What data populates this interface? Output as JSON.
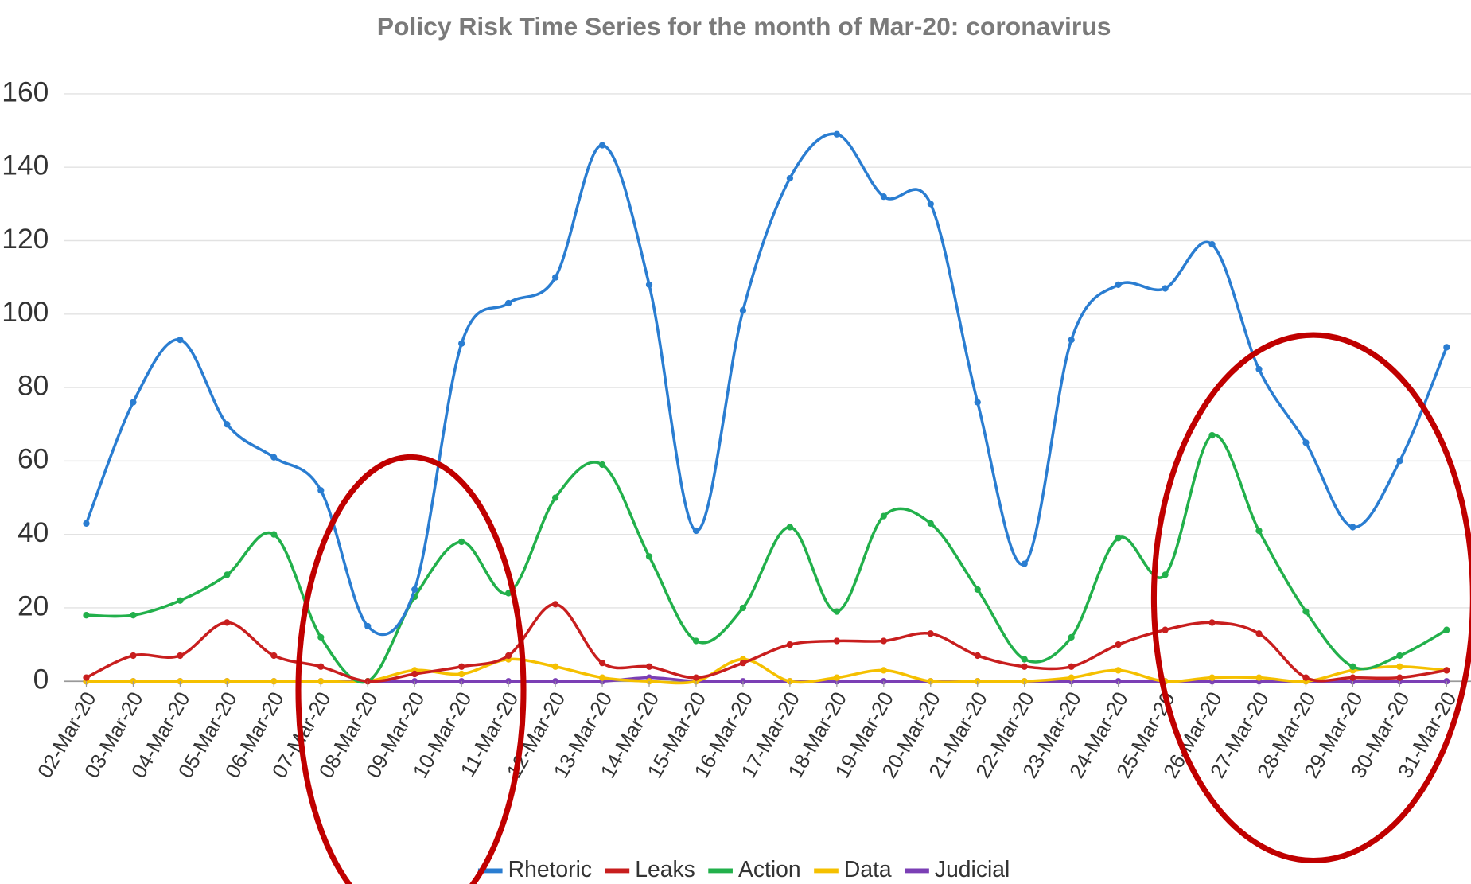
{
  "chart_data": {
    "type": "line",
    "title": "Policy Risk Time Series for the month of Mar-20: coronavirus",
    "categories": [
      "02-Mar-20",
      "03-Mar-20",
      "04-Mar-20",
      "05-Mar-20",
      "06-Mar-20",
      "07-Mar-20",
      "08-Mar-20",
      "09-Mar-20",
      "10-Mar-20",
      "11-Mar-20",
      "12-Mar-20",
      "13-Mar-20",
      "14-Mar-20",
      "15-Mar-20",
      "16-Mar-20",
      "17-Mar-20",
      "18-Mar-20",
      "19-Mar-20",
      "20-Mar-20",
      "21-Mar-20",
      "22-Mar-20",
      "23-Mar-20",
      "24-Mar-20",
      "25-Mar-20",
      "26-Mar-20",
      "27-Mar-20",
      "28-Mar-20",
      "29-Mar-20",
      "30-Mar-20",
      "31-Mar-20"
    ],
    "series": [
      {
        "name": "Rhetoric",
        "color": "#2a7dd1",
        "values": [
          43,
          76,
          93,
          70,
          61,
          52,
          15,
          25,
          92,
          103,
          110,
          146,
          108,
          41,
          101,
          137,
          149,
          132,
          130,
          76,
          32,
          93,
          108,
          107,
          119,
          85,
          65,
          42,
          60,
          91
        ]
      },
      {
        "name": "Leaks",
        "color": "#c81e1e",
        "values": [
          1,
          7,
          7,
          16,
          7,
          4,
          0,
          2,
          4,
          7,
          21,
          5,
          4,
          1,
          5,
          10,
          11,
          11,
          13,
          7,
          4,
          4,
          10,
          14,
          16,
          13,
          1,
          1,
          1,
          3
        ]
      },
      {
        "name": "Action",
        "color": "#22b04b",
        "values": [
          18,
          18,
          22,
          29,
          40,
          12,
          0,
          23,
          38,
          24,
          50,
          59,
          34,
          11,
          20,
          42,
          19,
          45,
          43,
          25,
          6,
          12,
          39,
          29,
          67,
          41,
          19,
          4,
          7,
          14
        ]
      },
      {
        "name": "Data",
        "color": "#f5c000",
        "values": [
          0,
          0,
          0,
          0,
          0,
          0,
          0,
          3,
          2,
          6,
          4,
          1,
          0,
          0,
          6,
          0,
          1,
          3,
          0,
          0,
          0,
          1,
          3,
          0,
          1,
          1,
          0,
          3,
          4,
          3
        ]
      },
      {
        "name": "Judicial",
        "color": "#7b3fb5",
        "values": [
          0,
          0,
          0,
          0,
          0,
          0,
          0,
          0,
          0,
          0,
          0,
          0,
          1,
          0,
          0,
          0,
          0,
          0,
          0,
          0,
          0,
          0,
          0,
          0,
          0,
          0,
          0,
          0,
          0,
          0
        ]
      }
    ],
    "ylim": [
      0,
      160
    ],
    "yticks": [
      0,
      20,
      40,
      60,
      80,
      100,
      120,
      140,
      160
    ],
    "grid": true,
    "legend": "bottom"
  }
}
